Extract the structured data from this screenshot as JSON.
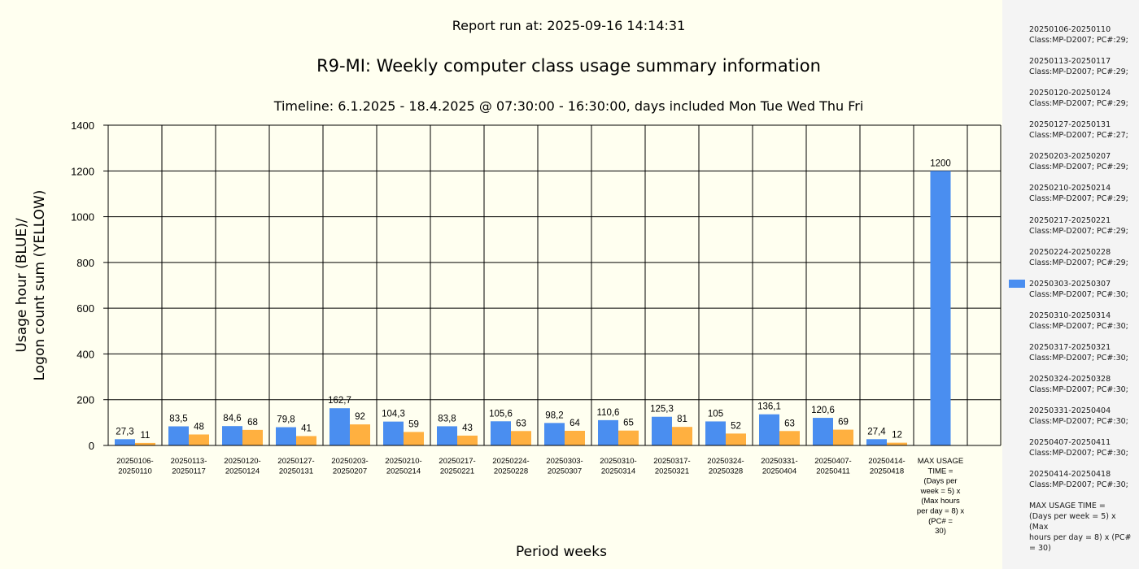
{
  "header": {
    "report_run": "Report run at: 2025-09-16 14:14:31",
    "title": "R9-MI: Weekly computer class usage summary information",
    "timeline": "Timeline:  6.1.2025  - 18.4.2025  @  07:30:00 -  16:30:00, days included Mon Tue Wed Thu Fri"
  },
  "colors": {
    "usage": "#4a8ef0",
    "logons": "#ffb040",
    "legend_bg": "#f4f4f4",
    "page_bg": "#fffff0"
  },
  "chart_data": {
    "type": "bar",
    "xlabel": "Period weeks",
    "ylabel_line1": "Usage hour (BLUE)/",
    "ylabel_line2": "Logon count sum (YELLOW)",
    "ylim": [
      0,
      1400
    ],
    "yticks": [
      "0",
      "200",
      "400",
      "600",
      "800",
      "1000",
      "1200",
      "1400"
    ],
    "grid": true,
    "categories": [
      [
        "20250106-",
        "20250110"
      ],
      [
        "20250113-",
        "20250117"
      ],
      [
        "20250120-",
        "20250124"
      ],
      [
        "20250127-",
        "20250131"
      ],
      [
        "20250203-",
        "20250207"
      ],
      [
        "20250210-",
        "20250214"
      ],
      [
        "20250217-",
        "20250221"
      ],
      [
        "20250224-",
        "20250228"
      ],
      [
        "20250303-",
        "20250307"
      ],
      [
        "20250310-",
        "20250314"
      ],
      [
        "20250317-",
        "20250321"
      ],
      [
        "20250324-",
        "20250328"
      ],
      [
        "20250331-",
        "20250404"
      ],
      [
        "20250407-",
        "20250411"
      ],
      [
        "20250414-",
        "20250418"
      ],
      [
        "MAX USAGE",
        "TIME =",
        "(Days per",
        "week = 5) x",
        "(Max hours",
        "per day = 8) x",
        "(PC# =",
        "30)"
      ]
    ],
    "series": [
      {
        "color": "#4a8ef0",
        "values": [
          27.3,
          83.5,
          84.6,
          79.8,
          162.7,
          104.3,
          83.8,
          105.6,
          98.2,
          110.6,
          125.3,
          105,
          136.1,
          120.6,
          27.4,
          1200
        ],
        "labels": [
          "27,3",
          "83,5",
          "84,6",
          "79,8",
          "162,7",
          "104,3",
          "83,8",
          "105,6",
          "98,2",
          "110,6",
          "125,3",
          "105",
          "136,1",
          "120,6",
          "27,4",
          "1200"
        ]
      },
      {
        "color": "#ffb040",
        "values": [
          11,
          48,
          68,
          41,
          92,
          59,
          43,
          63,
          64,
          65,
          81,
          52,
          63,
          69,
          12,
          null
        ],
        "labels": [
          "11",
          "48",
          "68",
          "41",
          "92",
          "59",
          "43",
          "63",
          "64",
          "65",
          "81",
          "52",
          "63",
          "69",
          "12",
          ""
        ]
      }
    ],
    "legend": {
      "placement": "right",
      "entries": [
        [
          "20250106-20250110",
          "Class:MP-D2007; PC#:29;"
        ],
        [
          "20250113-20250117",
          "Class:MP-D2007; PC#:29;"
        ],
        [
          "20250120-20250124",
          "Class:MP-D2007; PC#:29;"
        ],
        [
          "20250127-20250131",
          "Class:MP-D2007; PC#:27;"
        ],
        [
          "20250203-20250207",
          "Class:MP-D2007; PC#:29;"
        ],
        [
          "20250210-20250214",
          "Class:MP-D2007; PC#:29;"
        ],
        [
          "20250217-20250221",
          "Class:MP-D2007; PC#:29;"
        ],
        [
          "20250224-20250228",
          "Class:MP-D2007; PC#:29;"
        ],
        [
          "20250303-20250307",
          "Class:MP-D2007; PC#:30;"
        ],
        [
          "20250310-20250314",
          "Class:MP-D2007; PC#:30;"
        ],
        [
          "20250317-20250321",
          "Class:MP-D2007; PC#:30;"
        ],
        [
          "20250324-20250328",
          "Class:MP-D2007; PC#:30;"
        ],
        [
          "20250331-20250404",
          "Class:MP-D2007; PC#:30;"
        ],
        [
          "20250407-20250411",
          "Class:MP-D2007; PC#:30;"
        ],
        [
          "20250414-20250418",
          "Class:MP-D2007; PC#:30;"
        ],
        [
          "MAX USAGE TIME =",
          "(Days per week = 5) x (Max",
          "hours per day = 8) x (PC#",
          "= 30)"
        ]
      ]
    }
  }
}
